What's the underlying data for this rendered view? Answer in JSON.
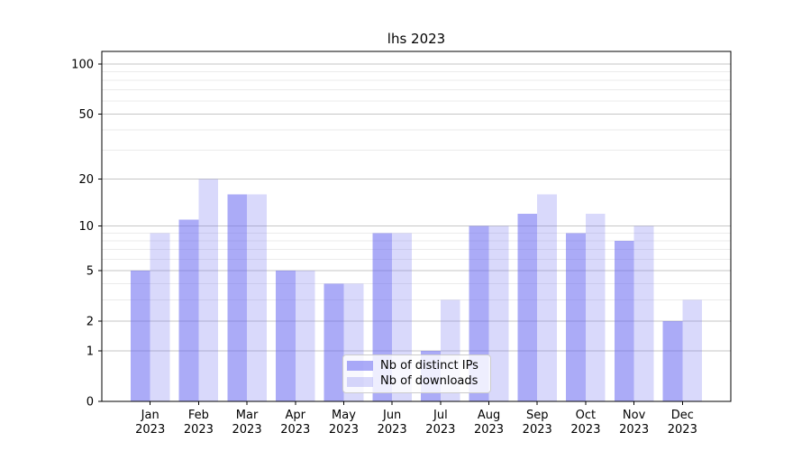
{
  "chart_data": {
    "type": "bar",
    "title": "lhs 2023",
    "categories": [
      "Jan",
      "Feb",
      "Mar",
      "Apr",
      "May",
      "Jun",
      "Jul",
      "Aug",
      "Sep",
      "Oct",
      "Nov",
      "Dec"
    ],
    "category_year": "2023",
    "series": [
      {
        "name": "Nb of distinct IPs",
        "color": "rgba(105,105,240,0.56)",
        "values": [
          5,
          11,
          16,
          5,
          4,
          9,
          1,
          10,
          12,
          9,
          8,
          2
        ]
      },
      {
        "name": "Nb of downloads",
        "color": "rgba(105,105,240,0.25)",
        "values": [
          9,
          20,
          16,
          5,
          4,
          9,
          3,
          10,
          16,
          12,
          10,
          3
        ]
      }
    ],
    "yscale": "log1p",
    "ylim": [
      0,
      119
    ],
    "yticks": [
      0,
      1,
      2,
      5,
      10,
      20,
      50,
      100
    ],
    "yticks_minor": [
      3,
      4,
      6,
      7,
      8,
      9,
      30,
      40,
      60,
      70,
      80,
      90
    ],
    "grid": true,
    "legend_position": "lower-center",
    "colors": {
      "grid_major": "#c6c6c6",
      "grid_minor": "#ebebeb",
      "frame": "#000000"
    }
  }
}
